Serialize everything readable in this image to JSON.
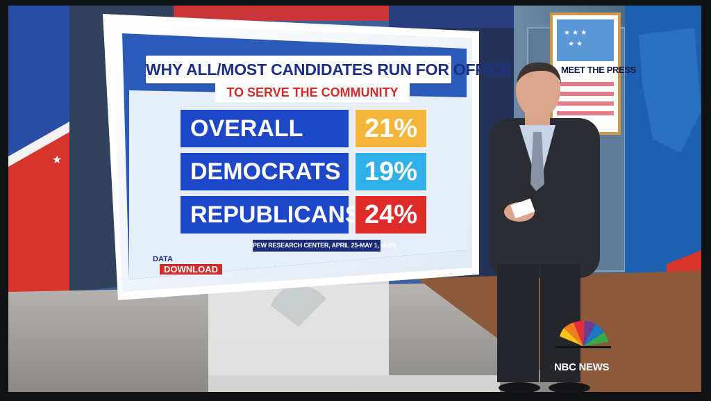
{
  "board": {
    "title": "WHY ALL/MOST CANDIDATES RUN FOR OFFICE",
    "subtitle": "TO SERVE THE COMMUNITY",
    "rows": [
      {
        "label": "OVERALL",
        "value": "21%",
        "color": "#f4b63a"
      },
      {
        "label": "DEMOCRATS",
        "value": "19%",
        "color": "#2fb0e8"
      },
      {
        "label": "REPUBLICANS",
        "value": "24%",
        "color": "#e02b2b"
      }
    ],
    "source": "PEW RESEARCH CENTER, APRIL 25-MAY 1, +/-2%",
    "brand_top": "DATA",
    "brand_bottom": "DOWNLOAD"
  },
  "poster": {
    "text": "MEET THE PRESS"
  },
  "network": {
    "name": "NBC NEWS"
  },
  "colors": {
    "label_blue": "#1d47c7",
    "title_navy": "#1d2f86",
    "accent_red": "#d32a2a"
  }
}
